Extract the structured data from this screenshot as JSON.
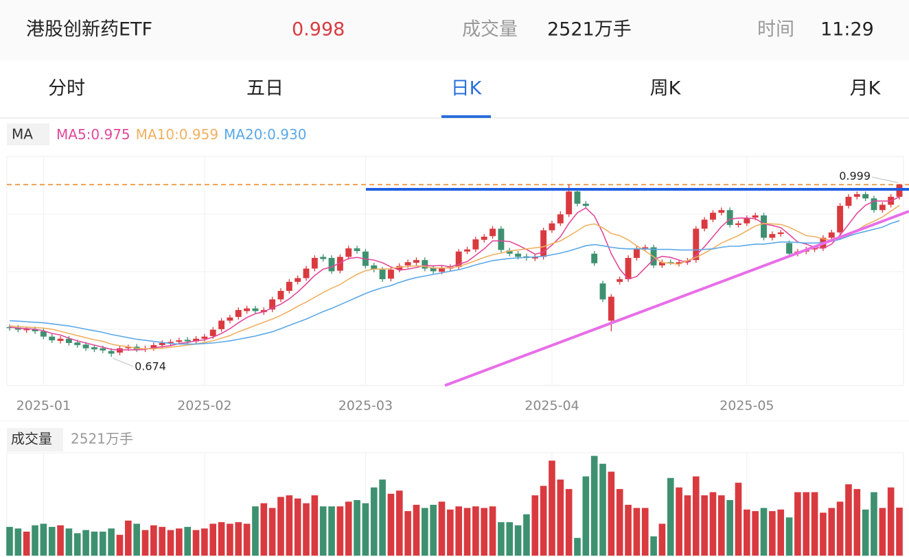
{
  "header": {
    "name": "港股创新药ETF",
    "price": 0.998,
    "volume_label": "成交量",
    "volume": "2521万手",
    "time_label": "时间",
    "time": "11:29"
  },
  "tabs": {
    "items": [
      "分时",
      "五日",
      "日K",
      "周K",
      "月K"
    ],
    "active": 2
  },
  "chart_data": [
    {
      "type": "candlestick",
      "legend_title": "MA",
      "up_color": "#d93a40",
      "down_color": "#3e9170",
      "ylim": [
        0.62,
        1.051
      ],
      "xticks": [
        {
          "value": 4,
          "label": "2025-01"
        },
        {
          "value": 23,
          "label": "2025-02"
        },
        {
          "value": 42,
          "label": "2025-03"
        },
        {
          "value": 64,
          "label": "2025-04"
        },
        {
          "value": 87,
          "label": "2025-05"
        }
      ],
      "open": [
        0.73,
        0.729,
        0.724,
        0.726,
        0.722,
        0.712,
        0.704,
        0.708,
        0.701,
        0.697,
        0.692,
        0.69,
        0.685,
        0.682,
        0.69,
        0.693,
        0.688,
        0.69,
        0.696,
        0.7,
        0.702,
        0.706,
        0.703,
        0.708,
        0.713,
        0.726,
        0.742,
        0.749,
        0.76,
        0.765,
        0.758,
        0.763,
        0.782,
        0.798,
        0.815,
        0.822,
        0.84,
        0.862,
        0.86,
        0.836,
        0.862,
        0.878,
        0.872,
        0.846,
        0.838,
        0.821,
        0.838,
        0.846,
        0.851,
        0.856,
        0.841,
        0.834,
        0.84,
        0.843,
        0.872,
        0.876,
        0.894,
        0.901,
        0.915,
        0.874,
        0.868,
        0.863,
        0.859,
        0.862,
        0.912,
        0.925,
        0.942,
        0.985,
        0.962,
        0.868,
        0.812,
        0.742,
        0.815,
        0.82,
        0.86,
        0.878,
        0.88,
        0.846,
        0.852,
        0.849,
        0.852,
        0.856,
        0.915,
        0.932,
        0.945,
        0.95,
        0.922,
        0.925,
        0.936,
        0.94,
        0.898,
        0.905,
        0.888,
        0.868,
        0.872,
        0.876,
        0.878,
        0.898,
        0.908,
        0.958,
        0.975,
        0.98,
        0.972,
        0.95,
        0.96,
        0.975
      ],
      "high": [
        0.735,
        0.734,
        0.731,
        0.731,
        0.727,
        0.717,
        0.713,
        0.713,
        0.706,
        0.702,
        0.697,
        0.695,
        0.69,
        0.695,
        0.697,
        0.698,
        0.695,
        0.701,
        0.705,
        0.707,
        0.71,
        0.711,
        0.713,
        0.717,
        0.73,
        0.747,
        0.753,
        0.767,
        0.77,
        0.77,
        0.767,
        0.787,
        0.803,
        0.82,
        0.827,
        0.845,
        0.865,
        0.867,
        0.865,
        0.867,
        0.883,
        0.883,
        0.877,
        0.851,
        0.843,
        0.843,
        0.85,
        0.857,
        0.861,
        0.861,
        0.846,
        0.845,
        0.848,
        0.877,
        0.881,
        0.9,
        0.905,
        0.92,
        0.92,
        0.879,
        0.873,
        0.868,
        0.867,
        0.917,
        0.93,
        0.948,
        0.998,
        0.99,
        0.967,
        0.873,
        0.817,
        0.792,
        0.825,
        0.865,
        0.883,
        0.885,
        0.885,
        0.857,
        0.857,
        0.857,
        0.86,
        0.92,
        0.937,
        0.95,
        0.955,
        0.955,
        0.93,
        0.94,
        0.945,
        0.945,
        0.91,
        0.913,
        0.893,
        0.877,
        0.881,
        0.883,
        0.903,
        0.913,
        0.963,
        0.98,
        0.985,
        0.985,
        0.977,
        0.965,
        0.98,
        0.999
      ],
      "low": [
        0.723,
        0.72,
        0.719,
        0.717,
        0.707,
        0.7,
        0.699,
        0.695,
        0.691,
        0.685,
        0.683,
        0.681,
        0.674,
        0.677,
        0.685,
        0.683,
        0.683,
        0.685,
        0.691,
        0.695,
        0.697,
        0.698,
        0.698,
        0.703,
        0.708,
        0.721,
        0.737,
        0.744,
        0.755,
        0.755,
        0.753,
        0.758,
        0.777,
        0.793,
        0.81,
        0.817,
        0.835,
        0.853,
        0.83,
        0.831,
        0.857,
        0.868,
        0.84,
        0.833,
        0.815,
        0.816,
        0.833,
        0.841,
        0.846,
        0.835,
        0.83,
        0.829,
        0.835,
        0.838,
        0.867,
        0.871,
        0.889,
        0.896,
        0.87,
        0.863,
        0.857,
        0.855,
        0.854,
        0.857,
        0.907,
        0.92,
        0.937,
        0.957,
        0.953,
        0.845,
        0.777,
        0.722,
        0.81,
        0.815,
        0.855,
        0.873,
        0.841,
        0.841,
        0.847,
        0.844,
        0.847,
        0.851,
        0.91,
        0.927,
        0.94,
        0.917,
        0.917,
        0.92,
        0.931,
        0.893,
        0.893,
        0.9,
        0.863,
        0.863,
        0.867,
        0.871,
        0.873,
        0.893,
        0.903,
        0.953,
        0.97,
        0.967,
        0.945,
        0.945,
        0.955,
        0.97
      ],
      "close": [
        0.728,
        0.725,
        0.726,
        0.722,
        0.712,
        0.705,
        0.708,
        0.7,
        0.696,
        0.69,
        0.688,
        0.686,
        0.68,
        0.69,
        0.692,
        0.688,
        0.69,
        0.696,
        0.7,
        0.702,
        0.705,
        0.703,
        0.708,
        0.712,
        0.725,
        0.742,
        0.748,
        0.762,
        0.765,
        0.76,
        0.762,
        0.782,
        0.798,
        0.815,
        0.822,
        0.84,
        0.86,
        0.858,
        0.835,
        0.862,
        0.878,
        0.873,
        0.845,
        0.838,
        0.82,
        0.838,
        0.845,
        0.852,
        0.856,
        0.84,
        0.835,
        0.84,
        0.843,
        0.872,
        0.876,
        0.895,
        0.9,
        0.915,
        0.875,
        0.868,
        0.862,
        0.86,
        0.862,
        0.912,
        0.925,
        0.942,
        0.985,
        0.962,
        0.958,
        0.85,
        0.782,
        0.787,
        0.82,
        0.86,
        0.878,
        0.88,
        0.846,
        0.852,
        0.85,
        0.852,
        0.855,
        0.915,
        0.932,
        0.945,
        0.95,
        0.922,
        0.925,
        0.935,
        0.94,
        0.898,
        0.905,
        0.908,
        0.868,
        0.872,
        0.876,
        0.878,
        0.898,
        0.908,
        0.958,
        0.975,
        0.98,
        0.972,
        0.95,
        0.96,
        0.975,
        0.998
      ],
      "series": [
        {
          "name": "MA5:0.975",
          "color": "#e0489a",
          "values": [
            0.73,
            0.728,
            0.727,
            0.726,
            0.723,
            0.718,
            0.715,
            0.709,
            0.704,
            0.7,
            0.696,
            0.692,
            0.688,
            0.687,
            0.687,
            0.687,
            0.688,
            0.691,
            0.693,
            0.695,
            0.699,
            0.701,
            0.704,
            0.706,
            0.711,
            0.718,
            0.727,
            0.738,
            0.748,
            0.755,
            0.759,
            0.766,
            0.773,
            0.783,
            0.796,
            0.811,
            0.827,
            0.839,
            0.843,
            0.851,
            0.859,
            0.861,
            0.858,
            0.856,
            0.851,
            0.843,
            0.837,
            0.839,
            0.842,
            0.846,
            0.845,
            0.846,
            0.843,
            0.848,
            0.853,
            0.865,
            0.877,
            0.892,
            0.892,
            0.891,
            0.884,
            0.876,
            0.867,
            0.871,
            0.884,
            0.9,
            0.925,
            0.945,
            0.954,
            0.939,
            0.907,
            0.868,
            0.839,
            0.82,
            0.825,
            0.841,
            0.857,
            0.863,
            0.861,
            0.856,
            0.851,
            0.865,
            0.881,
            0.9,
            0.919,
            0.933,
            0.935,
            0.935,
            0.934,
            0.924,
            0.921,
            0.917,
            0.904,
            0.89,
            0.886,
            0.88,
            0.878,
            0.886,
            0.903,
            0.923,
            0.944,
            0.959,
            0.967,
            0.967,
            0.967,
            0.975
          ]
        },
        {
          "name": "MA10:0.959",
          "color": "#f0b060",
          "values": [
            0.732,
            0.731,
            0.73,
            0.729,
            0.728,
            0.726,
            0.722,
            0.718,
            0.714,
            0.71,
            0.706,
            0.703,
            0.698,
            0.695,
            0.693,
            0.69,
            0.689,
            0.689,
            0.69,
            0.692,
            0.694,
            0.696,
            0.698,
            0.701,
            0.704,
            0.709,
            0.714,
            0.721,
            0.727,
            0.733,
            0.739,
            0.745,
            0.752,
            0.76,
            0.769,
            0.777,
            0.786,
            0.795,
            0.803,
            0.81,
            0.82,
            0.829,
            0.836,
            0.839,
            0.839,
            0.84,
            0.843,
            0.844,
            0.845,
            0.844,
            0.841,
            0.841,
            0.841,
            0.844,
            0.849,
            0.855,
            0.861,
            0.866,
            0.869,
            0.873,
            0.875,
            0.877,
            0.879,
            0.881,
            0.887,
            0.892,
            0.901,
            0.911,
            0.921,
            0.924,
            0.917,
            0.906,
            0.902,
            0.894,
            0.883,
            0.873,
            0.862,
            0.851,
            0.85,
            0.848,
            0.855,
            0.861,
            0.869,
            0.878,
            0.888,
            0.895,
            0.902,
            0.911,
            0.92,
            0.925,
            0.924,
            0.923,
            0.918,
            0.91,
            0.902,
            0.9,
            0.896,
            0.893,
            0.896,
            0.901,
            0.912,
            0.922,
            0.929,
            0.937,
            0.948,
            0.959
          ]
        },
        {
          "name": "MA20:0.930",
          "color": "#5aa8e8",
          "values": [
            0.742,
            0.741,
            0.74,
            0.739,
            0.738,
            0.736,
            0.734,
            0.732,
            0.729,
            0.726,
            0.723,
            0.72,
            0.716,
            0.713,
            0.71,
            0.707,
            0.705,
            0.703,
            0.701,
            0.699,
            0.698,
            0.698,
            0.698,
            0.699,
            0.7,
            0.702,
            0.704,
            0.707,
            0.71,
            0.713,
            0.717,
            0.721,
            0.727,
            0.733,
            0.739,
            0.745,
            0.752,
            0.759,
            0.765,
            0.772,
            0.779,
            0.786,
            0.793,
            0.799,
            0.804,
            0.808,
            0.814,
            0.819,
            0.823,
            0.826,
            0.829,
            0.832,
            0.835,
            0.838,
            0.842,
            0.847,
            0.851,
            0.855,
            0.857,
            0.859,
            0.86,
            0.861,
            0.862,
            0.863,
            0.866,
            0.869,
            0.873,
            0.878,
            0.883,
            0.885,
            0.883,
            0.88,
            0.878,
            0.877,
            0.877,
            0.877,
            0.876,
            0.876,
            0.876,
            0.875,
            0.875,
            0.875,
            0.876,
            0.877,
            0.88,
            0.882,
            0.882,
            0.884,
            0.886,
            0.886,
            0.888,
            0.89,
            0.89,
            0.889,
            0.888,
            0.888,
            0.889,
            0.891,
            0.895,
            0.901,
            0.906,
            0.91,
            0.914,
            0.918,
            0.925,
            0.93
          ]
        }
      ]
    },
    {
      "type": "bar",
      "title": "成交量",
      "subtitle": "2521万手",
      "ylim": [
        0,
        6000
      ],
      "values": [
        1300,
        1200,
        1000,
        1400,
        1500,
        1300,
        1400,
        1200,
        900,
        1100,
        1000,
        1000,
        1200,
        800,
        1700,
        1500,
        1100,
        1400,
        1300,
        1100,
        1200,
        1300,
        1100,
        1200,
        1500,
        1600,
        1500,
        1600,
        1500,
        2600,
        2800,
        2500,
        3200,
        3300,
        3100,
        2800,
        3300,
        2600,
        2600,
        2600,
        2900,
        3000,
        2800,
        3800,
        4300,
        3400,
        3600,
        2300,
        2700,
        2500,
        2700,
        2900,
        2400,
        2600,
        2500,
        2600,
        2500,
        2600,
        1600,
        1600,
        1400,
        2100,
        3300,
        3900,
        5500,
        4300,
        3700,
        600,
        4500,
        5800,
        5300,
        4800,
        3700,
        2700,
        2500,
        2500,
        700,
        1500,
        4400,
        3800,
        3300,
        4500,
        3300,
        3500,
        3300,
        3000,
        4100,
        2400,
        2300,
        2500,
        2300,
        2400,
        1900,
        3500,
        3500,
        3500,
        2200,
        2500,
        2900,
        4000,
        3700,
        2400,
        3500,
        2500,
        3800,
        2521
      ]
    }
  ]
}
